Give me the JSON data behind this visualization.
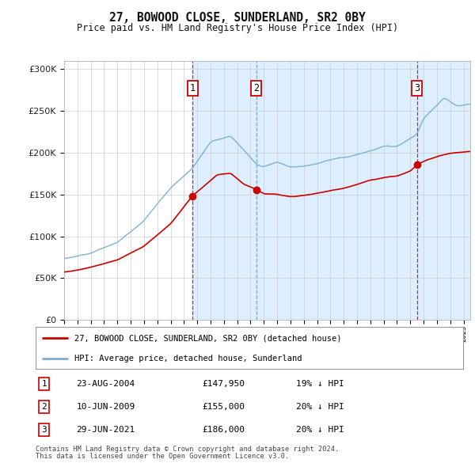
{
  "title": "27, BOWOOD CLOSE, SUNDERLAND, SR2 0BY",
  "subtitle": "Price paid vs. HM Land Registry's House Price Index (HPI)",
  "red_label": "27, BOWOOD CLOSE, SUNDERLAND, SR2 0BY (detached house)",
  "blue_label": "HPI: Average price, detached house, Sunderland",
  "transactions": [
    {
      "num": 1,
      "date": "23-AUG-2004",
      "price": 147950,
      "pct": "19%",
      "dir": "↓",
      "year": 2004.64
    },
    {
      "num": 2,
      "date": "10-JUN-2009",
      "price": 155000,
      "pct": "20%",
      "dir": "↓",
      "year": 2009.44
    },
    {
      "num": 3,
      "date": "29-JUN-2021",
      "price": 186000,
      "pct": "20%",
      "dir": "↓",
      "year": 2021.49
    }
  ],
  "footnote1": "Contains HM Land Registry data © Crown copyright and database right 2024.",
  "footnote2": "This data is licensed under the Open Government Licence v3.0.",
  "ylim": [
    0,
    310000
  ],
  "yticks": [
    0,
    50000,
    100000,
    150000,
    200000,
    250000,
    300000
  ],
  "xlim_start": 1995.0,
  "xlim_end": 2025.5,
  "plot_bg": "#ffffff",
  "red_color": "#cc0000",
  "blue_color": "#7aaed6",
  "shade_color": "#ddeeff",
  "vline1_color": "#cc0000",
  "vline2_color": "#6699bb",
  "vline3_color": "#cc0000"
}
